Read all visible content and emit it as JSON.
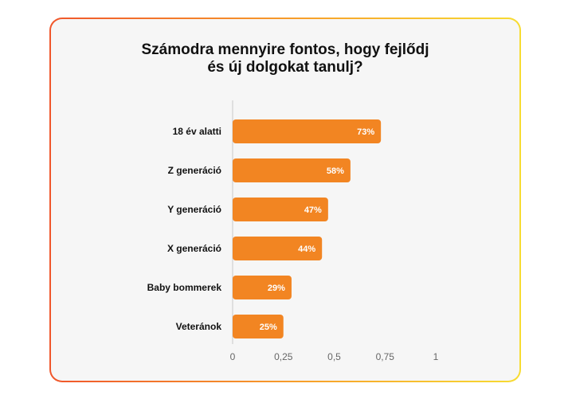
{
  "chart_data": {
    "type": "bar",
    "orientation": "horizontal",
    "title": "Számodra mennyire fontos, hogy fejlődj\nés új dolgokat tanulj?",
    "categories": [
      "18 év alatti",
      "Z generáció",
      "Y generáció",
      "X generáció",
      "Baby bommerek",
      "Veteránok"
    ],
    "values": [
      0.73,
      0.58,
      0.47,
      0.44,
      0.29,
      0.25
    ],
    "data_labels": [
      "73%",
      "58%",
      "47%",
      "44%",
      "29%",
      "25%"
    ],
    "xlim": [
      0,
      1
    ],
    "x_ticks": [
      0,
      0.25,
      0.5,
      0.75,
      1
    ],
    "x_tick_labels": [
      "0",
      "0,25",
      "0,5",
      "0,75",
      "1"
    ],
    "bar_color": "#f28522",
    "grid": false,
    "legend": "none"
  }
}
